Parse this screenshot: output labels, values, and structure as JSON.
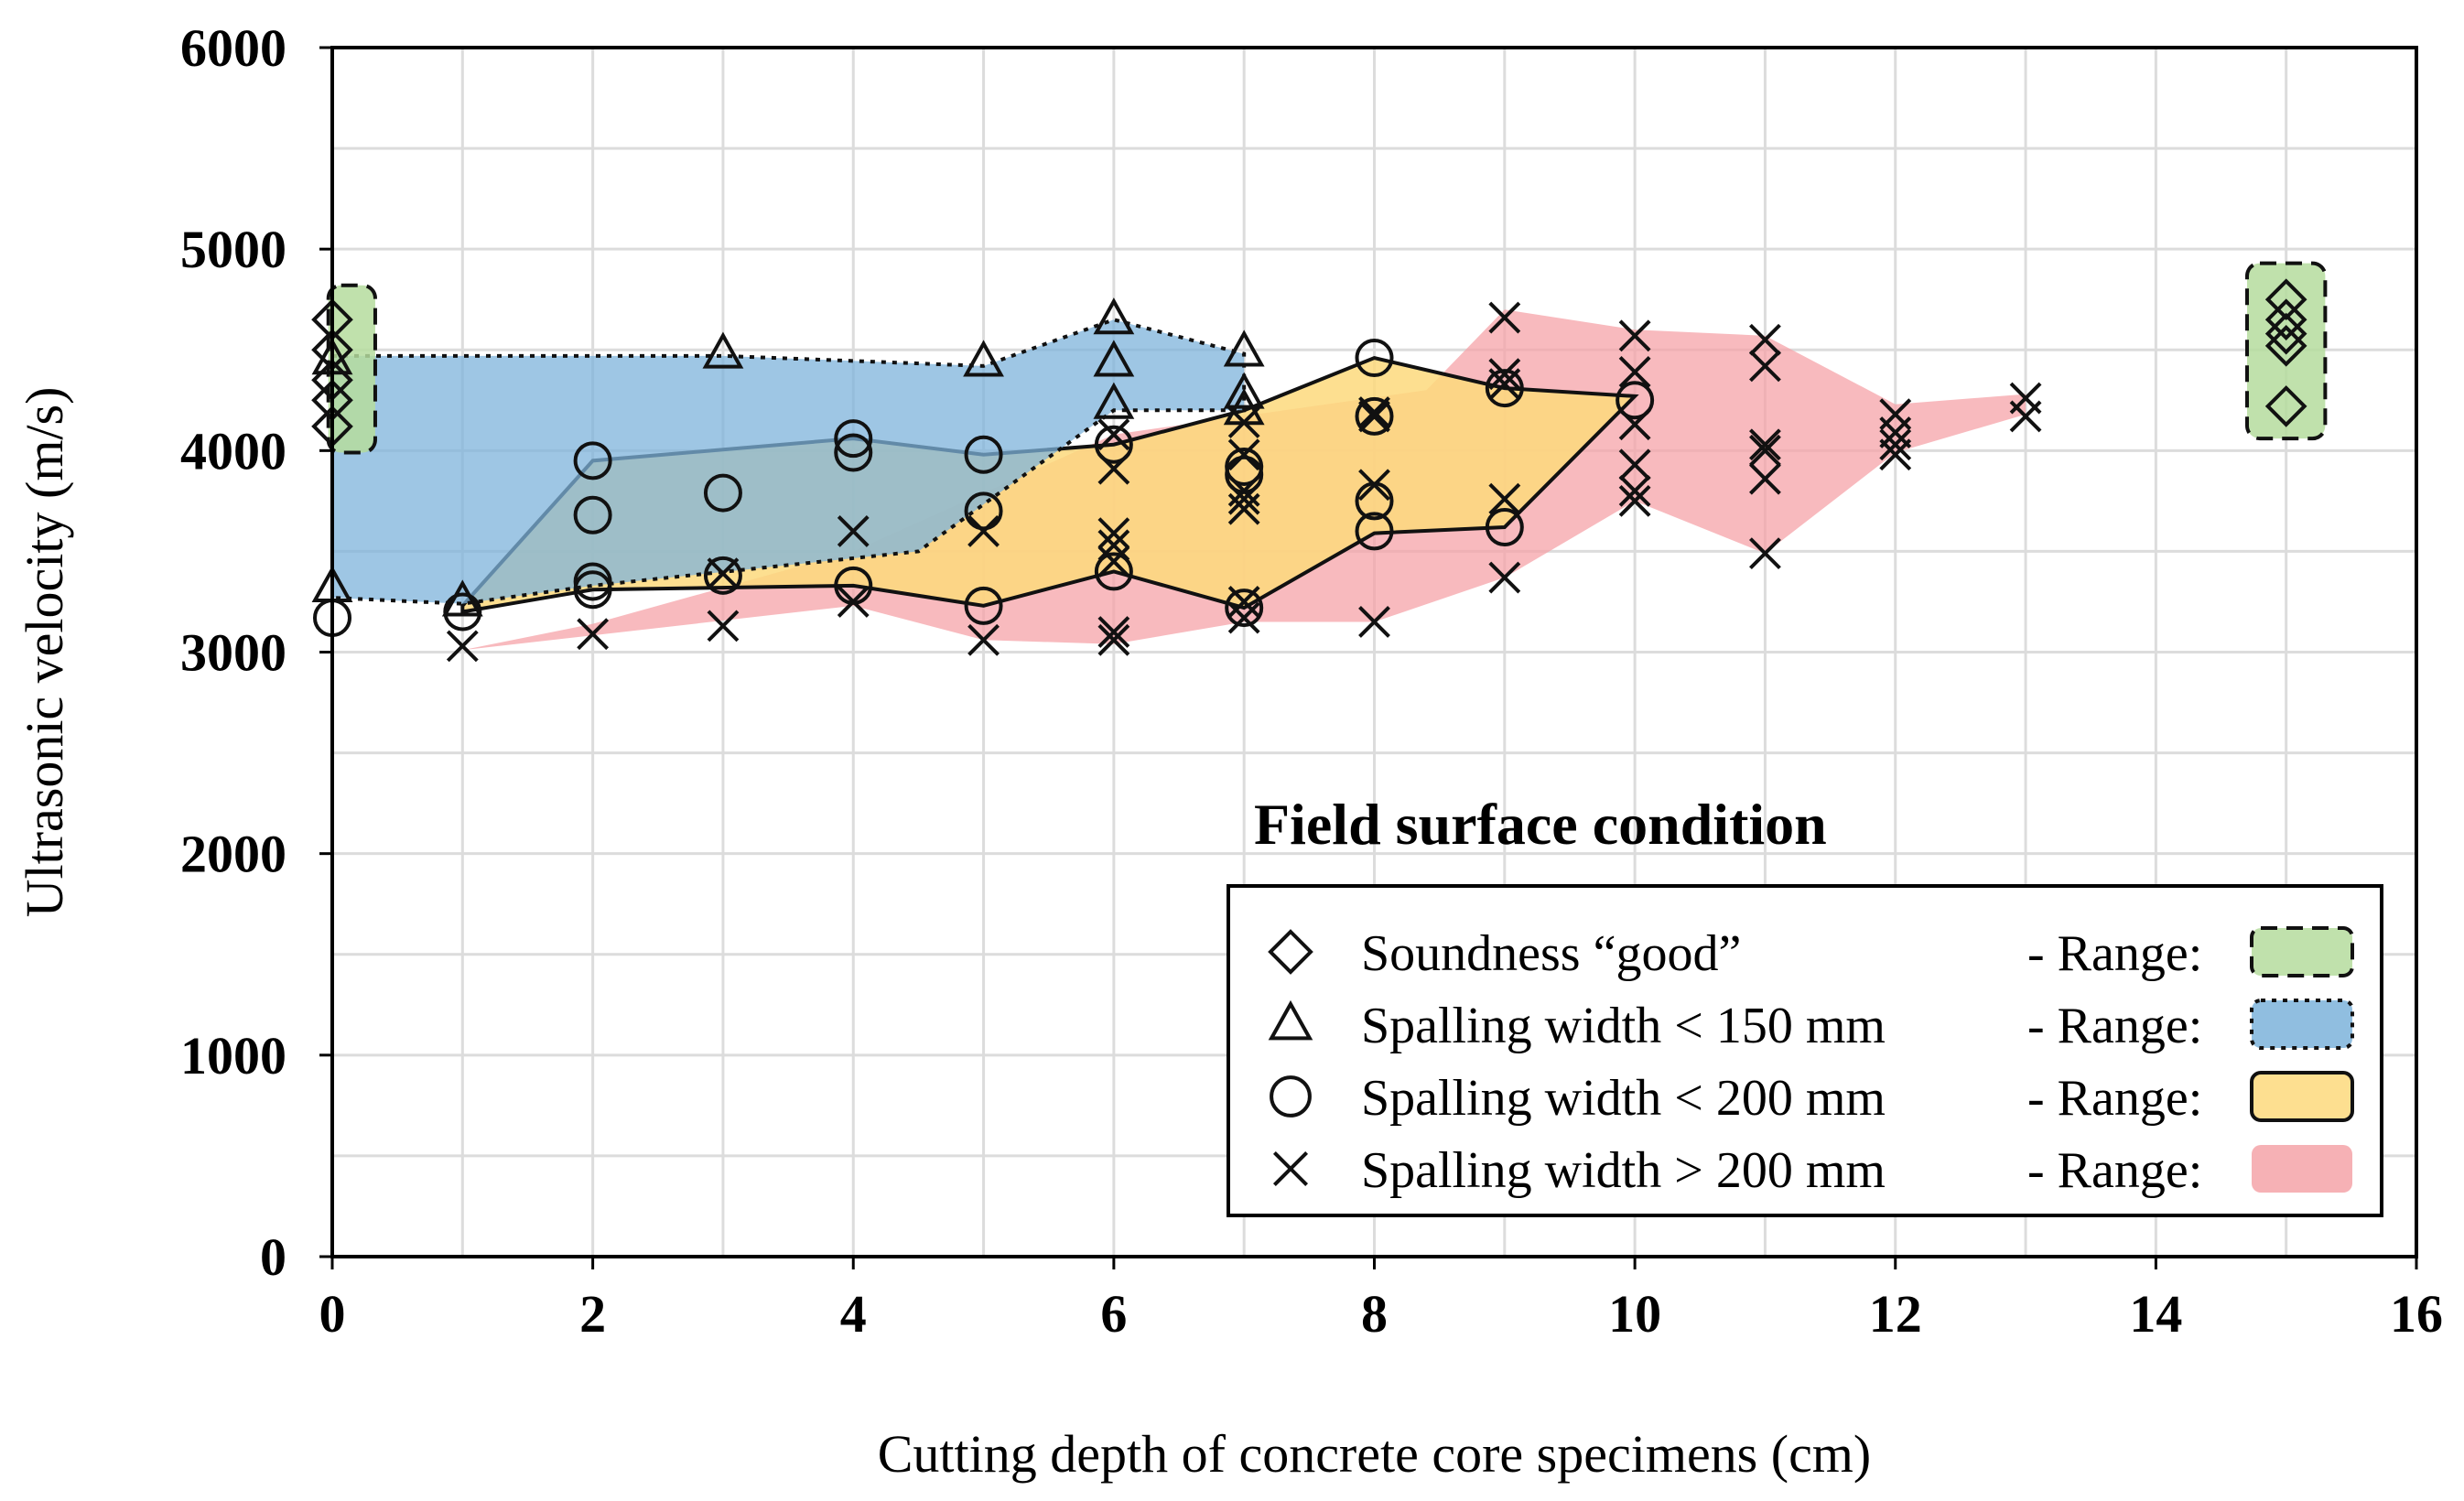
{
  "chart_data": {
    "type": "scatter",
    "title": "",
    "xlabel": "Cutting depth of concrete core specimens (cm)",
    "ylabel": "Ultrasonic velocity (m/s)",
    "xlim": [
      0,
      16
    ],
    "ylim": [
      0,
      6000
    ],
    "x_ticks": [
      "0",
      "2",
      "4",
      "6",
      "8",
      "10",
      "12",
      "14",
      "16"
    ],
    "y_ticks": [
      "0",
      "1000",
      "2000",
      "3000",
      "4000",
      "5000",
      "6000"
    ],
    "grid": true,
    "legend_title": "Field surface condition",
    "legend_range_label": "- Range:",
    "series": [
      {
        "name": "Soundness “good”",
        "marker": "diamond",
        "fill_color": "#b5dc9d",
        "range_style": "dashed",
        "points": [
          [
            0,
            4650
          ],
          [
            0,
            4500
          ],
          [
            0,
            4350
          ],
          [
            0,
            4250
          ],
          [
            0,
            4120
          ],
          [
            15,
            4750
          ],
          [
            15,
            4650
          ],
          [
            15,
            4580
          ],
          [
            15,
            4520
          ],
          [
            15,
            4220
          ]
        ],
        "ranges": [
          [
            [
              -0.03,
              4820
            ],
            [
              0.33,
              4820
            ],
            [
              0.33,
              3990
            ],
            [
              -0.03,
              3990
            ]
          ],
          [
            [
              14.7,
              4930
            ],
            [
              15.3,
              4930
            ],
            [
              15.3,
              4060
            ],
            [
              14.7,
              4060
            ]
          ]
        ]
      },
      {
        "name": "Spalling width < 150 mm",
        "marker": "triangle",
        "fill_color": "#7db3db",
        "range_style": "dotted",
        "points": [
          [
            0,
            3320
          ],
          [
            0,
            4450
          ],
          [
            1,
            3250
          ],
          [
            3,
            4480
          ],
          [
            5,
            4440
          ],
          [
            6,
            4650
          ],
          [
            6,
            4440
          ],
          [
            6,
            4230
          ],
          [
            7,
            4490
          ],
          [
            7,
            4280
          ],
          [
            7,
            4200
          ]
        ],
        "ranges": [
          [
            [
              0,
              4470
            ],
            [
              3,
              4470
            ],
            [
              5,
              4420
            ],
            [
              6,
              4650
            ],
            [
              7,
              4480
            ],
            [
              7,
              4200
            ],
            [
              6,
              4200
            ],
            [
              4.5,
              3500
            ],
            [
              2,
              3330
            ],
            [
              1,
              3240
            ],
            [
              0,
              3270
            ]
          ]
        ]
      },
      {
        "name": "Spalling width < 200 mm",
        "marker": "circle",
        "fill_color": "#fdd97d",
        "range_style": "solid",
        "points": [
          [
            0,
            3170
          ],
          [
            1,
            3200
          ],
          [
            2,
            3950
          ],
          [
            2,
            3680
          ],
          [
            2,
            3350
          ],
          [
            2,
            3310
          ],
          [
            3,
            3790
          ],
          [
            3,
            3380
          ],
          [
            4,
            4060
          ],
          [
            4,
            3990
          ],
          [
            4,
            3330
          ],
          [
            5,
            3980
          ],
          [
            5,
            3700
          ],
          [
            5,
            3230
          ],
          [
            6,
            4030
          ],
          [
            6,
            3400
          ],
          [
            7,
            3920
          ],
          [
            7,
            3880
          ],
          [
            7,
            3220
          ],
          [
            8,
            4460
          ],
          [
            8,
            4170
          ],
          [
            8,
            3750
          ],
          [
            8,
            3600
          ],
          [
            9,
            4310
          ],
          [
            9,
            3620
          ],
          [
            10,
            4250
          ]
        ],
        "ranges": [
          [
            [
              1,
              3230
            ],
            [
              2,
              3950
            ],
            [
              4,
              4060
            ],
            [
              5,
              3980
            ],
            [
              6,
              4030
            ],
            [
              7,
              4200
            ],
            [
              8,
              4460
            ],
            [
              9,
              4310
            ],
            [
              10,
              4270
            ],
            [
              9,
              3620
            ],
            [
              8,
              3590
            ],
            [
              7,
              3220
            ],
            [
              6,
              3400
            ],
            [
              5,
              3230
            ],
            [
              4,
              3330
            ],
            [
              2,
              3310
            ],
            [
              1,
              3200
            ]
          ]
        ]
      },
      {
        "name": "Spalling width > 200 mm",
        "marker": "x",
        "fill_color": "#f5a3a8",
        "range_style": "none",
        "points": [
          [
            1,
            3030
          ],
          [
            2,
            3090
          ],
          [
            3,
            3130
          ],
          [
            3,
            3390
          ],
          [
            4,
            3250
          ],
          [
            4,
            3600
          ],
          [
            5,
            3060
          ],
          [
            5,
            3600
          ],
          [
            6,
            3060
          ],
          [
            6,
            3100
          ],
          [
            6,
            3450
          ],
          [
            6,
            3530
          ],
          [
            6,
            3590
          ],
          [
            6,
            3910
          ],
          [
            6,
            4080
          ],
          [
            7,
            3170
          ],
          [
            7,
            3250
          ],
          [
            7,
            3710
          ],
          [
            7,
            3760
          ],
          [
            7,
            3800
          ],
          [
            7,
            3980
          ],
          [
            7,
            4140
          ],
          [
            8,
            3150
          ],
          [
            8,
            3830
          ],
          [
            8,
            4170
          ],
          [
            8,
            4190
          ],
          [
            9,
            3370
          ],
          [
            9,
            3760
          ],
          [
            9,
            4330
          ],
          [
            9,
            4380
          ],
          [
            9,
            4660
          ],
          [
            10,
            3750
          ],
          [
            10,
            3800
          ],
          [
            10,
            3930
          ],
          [
            10,
            4130
          ],
          [
            10,
            4390
          ],
          [
            10,
            4570
          ],
          [
            11,
            3490
          ],
          [
            11,
            3860
          ],
          [
            11,
            4000
          ],
          [
            11,
            4030
          ],
          [
            11,
            4420
          ],
          [
            11,
            4550
          ],
          [
            12,
            3980
          ],
          [
            12,
            4030
          ],
          [
            12,
            4090
          ],
          [
            12,
            4180
          ],
          [
            13,
            4170
          ],
          [
            13,
            4260
          ]
        ],
        "ranges": [
          [
            [
              1,
              3010
            ],
            [
              4,
              3230
            ],
            [
              5,
              3060
            ],
            [
              6,
              3040
            ],
            [
              7,
              3150
            ],
            [
              8,
              3150
            ],
            [
              9,
              3370
            ],
            [
              10,
              3750
            ],
            [
              11,
              3490
            ],
            [
              12,
              3990
            ],
            [
              13,
              4180
            ],
            [
              13,
              4280
            ],
            [
              12,
              4230
            ],
            [
              11,
              4570
            ],
            [
              10,
              4600
            ],
            [
              9,
              4700
            ],
            [
              8.4,
              4300
            ],
            [
              6,
              4080
            ],
            [
              4,
              3500
            ],
            [
              2,
              3140
            ]
          ]
        ]
      }
    ]
  }
}
